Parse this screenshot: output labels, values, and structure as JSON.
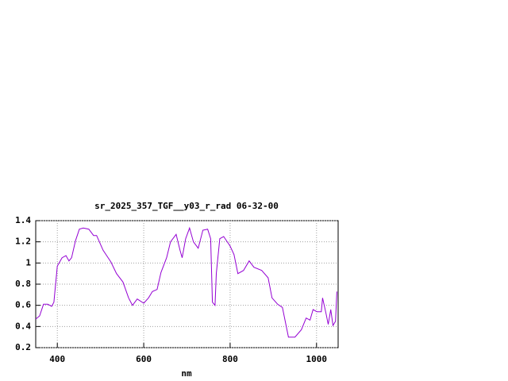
{
  "chart_data": {
    "type": "line",
    "title": "sr_2025_357_TGF__y03_r_rad 06-32-00",
    "xlabel": "nm",
    "x": [
      350,
      359,
      368,
      378,
      387,
      392,
      400,
      411,
      420,
      427,
      433,
      442,
      451,
      460,
      473,
      484,
      491,
      506,
      524,
      537,
      552,
      565,
      574,
      585,
      600,
      611,
      620,
      631,
      640,
      653,
      662,
      675,
      684,
      689,
      697,
      706,
      715,
      726,
      737,
      748,
      755,
      759,
      765,
      768,
      776,
      785,
      800,
      809,
      818,
      831,
      844,
      855,
      873,
      888,
      897,
      910,
      921,
      935,
      950,
      965,
      976,
      985,
      992,
      1001,
      1011,
      1014,
      1022,
      1027,
      1033,
      1038,
      1044,
      1047
    ],
    "series": [
      {
        "color": "#9400d3",
        "values": [
          0.47,
          0.5,
          0.61,
          0.61,
          0.59,
          0.63,
          0.97,
          1.05,
          1.07,
          1.02,
          1.05,
          1.21,
          1.32,
          1.33,
          1.32,
          1.26,
          1.26,
          1.12,
          1.01,
          0.9,
          0.82,
          0.67,
          0.6,
          0.66,
          0.62,
          0.67,
          0.73,
          0.75,
          0.91,
          1.05,
          1.2,
          1.27,
          1.12,
          1.05,
          1.23,
          1.33,
          1.2,
          1.14,
          1.31,
          1.32,
          1.23,
          0.63,
          0.6,
          0.9,
          1.23,
          1.25,
          1.16,
          1.08,
          0.9,
          0.93,
          1.02,
          0.96,
          0.93,
          0.86,
          0.67,
          0.61,
          0.58,
          0.3,
          0.3,
          0.37,
          0.48,
          0.46,
          0.56,
          0.54,
          0.54,
          0.67,
          0.52,
          0.42,
          0.56,
          0.41,
          0.45,
          0.73
        ]
      }
    ],
    "xlim": [
      350,
      1050
    ],
    "xticks": [
      400,
      600,
      800,
      1000
    ],
    "ylim": [
      0.2,
      1.4
    ],
    "yticks": [
      0.2,
      0.4,
      0.6,
      0.8,
      1,
      1.2,
      1.4
    ],
    "grid": true
  }
}
